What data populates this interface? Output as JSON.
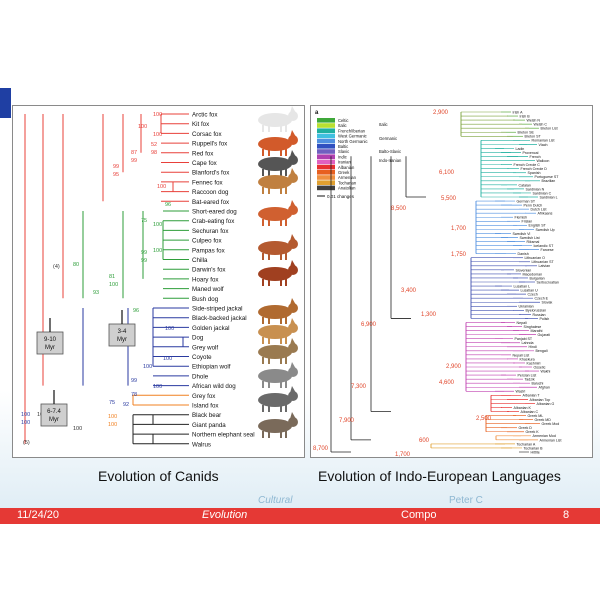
{
  "slide": {
    "left_caption": "Evolution of Canids",
    "right_caption": "Evolution of Indo-European Languages",
    "ghost_left": "Cultural",
    "ghost_right": "Peter C"
  },
  "footer": {
    "date": "11/24/20",
    "title": "Evolution",
    "author": "Compo",
    "page": "8"
  },
  "canids": {
    "taxa": [
      "Arctic fox",
      "Kit fox",
      "Corsac fox",
      "Ruppell's fox",
      "Red fox",
      "Cape fox",
      "Blanford's fox",
      "Fennec fox",
      "Raccoon dog",
      "Bat-eared fox",
      "Short-eared dog",
      "Crab-eating fox",
      "Sechuran fox",
      "Culpeo fox",
      "Pampas fox",
      "Chilla",
      "Darwin's fox",
      "Hoary fox",
      "Maned wolf",
      "Bush dog",
      "Side-striped jackal",
      "Black-backed jackal",
      "Golden jackal",
      "Dog",
      "Grey wolf",
      "Coyote",
      "Ethiopian wolf",
      "Dhole",
      "African wild dog",
      "Grey fox",
      "Island fox",
      "Black bear",
      "Giant panda",
      "Northern elephant seal",
      "Walrus"
    ],
    "support": [
      "100",
      "100",
      "100",
      "52",
      "98",
      "87",
      "99",
      "99",
      "95",
      "100",
      "96",
      "100",
      "75",
      "100",
      "80",
      "(4)",
      "99",
      "99",
      "81",
      "100",
      "93",
      "96",
      "100",
      "100",
      "100",
      "100",
      "99",
      "78",
      "92",
      "75",
      "100",
      "100",
      "100",
      "100",
      "100",
      "100",
      "(5)"
    ],
    "time_boxes": [
      "9-10\nMyr",
      "6-7.4\nMyr",
      "3-4\nMyr"
    ],
    "colors": {
      "red": "#e8403a",
      "green": "#2e9e3a",
      "blue": "#2a3aa0",
      "orange": "#f08020",
      "black": "#222222"
    }
  },
  "languages": {
    "legend": [
      "Celtic",
      "Italic",
      "French/Iberian",
      "West Germanic",
      "North Germanic",
      "Baltic",
      "Slavic",
      "Indic",
      "Iranian",
      "Albanian",
      "Greek",
      "Armenian",
      "Tocharian",
      "Anatolian"
    ],
    "legend_groups": [
      "Italic",
      "Germanic",
      "Balto-Slavic",
      "Indo-Iranian"
    ],
    "scale": "0.01 changes",
    "ages": [
      "2,900",
      "6,100",
      "5,500",
      "1,700",
      "8,500",
      "1,750",
      "3,400",
      "1,300",
      "6,900",
      "2,900",
      "4,600",
      "2,500",
      "7,300",
      "7,900",
      "600",
      "8,700",
      "1,700"
    ],
    "languages_list": [
      "Irish A",
      "Irish B",
      "Welsh N",
      "Welsh C",
      "Breton List",
      "Breton SE",
      "Breton ST",
      "Romanian List",
      "Vlach",
      "Ladin",
      "Provencal",
      "French",
      "Walloon",
      "French Creole C",
      "French Creole D",
      "Spanish",
      "Portuguese ST",
      "Brazilian",
      "Catalan",
      "Sardinian N",
      "Sardinian C",
      "Sardinian L",
      "German ST",
      "Penn Dutch",
      "Dutch List",
      "Afrikaans",
      "Flemish",
      "Frisian",
      "English ST",
      "Swedish Up",
      "Swedish Vl",
      "Swedish List",
      "Riksmal",
      "Icelandic ST",
      "Faroese",
      "Danish",
      "Lithuanian O",
      "Lithuanian ST",
      "Latvian",
      "Slovenian",
      "Macedonian",
      "Bulgarian",
      "Serbocroatian",
      "Lusatian L",
      "Lusatian U",
      "Czech",
      "Czech E",
      "Slovak",
      "Ukrainian",
      "Byelorussian",
      "Russian",
      "Polish",
      "Nepali",
      "Singhalese",
      "Marathi",
      "Gujarati",
      "Panjabi ST",
      "Lahnda",
      "Hindi",
      "Bengali",
      "Nepali List",
      "Khaskura",
      "Kashmiri",
      "Ossetic",
      "Wakhi",
      "Persian List",
      "Tadzik",
      "Baluchi",
      "Afghan",
      "Waziri",
      "Albanian T",
      "Albanian Top",
      "Albanian G",
      "Albanian K",
      "Albanian C",
      "Greek ML",
      "Greek MD",
      "Greek Mod",
      "Greek D",
      "Greek K",
      "Armenian Mod",
      "Armenian List",
      "Tocharian A",
      "Tocharian B",
      "Hittite"
    ]
  }
}
